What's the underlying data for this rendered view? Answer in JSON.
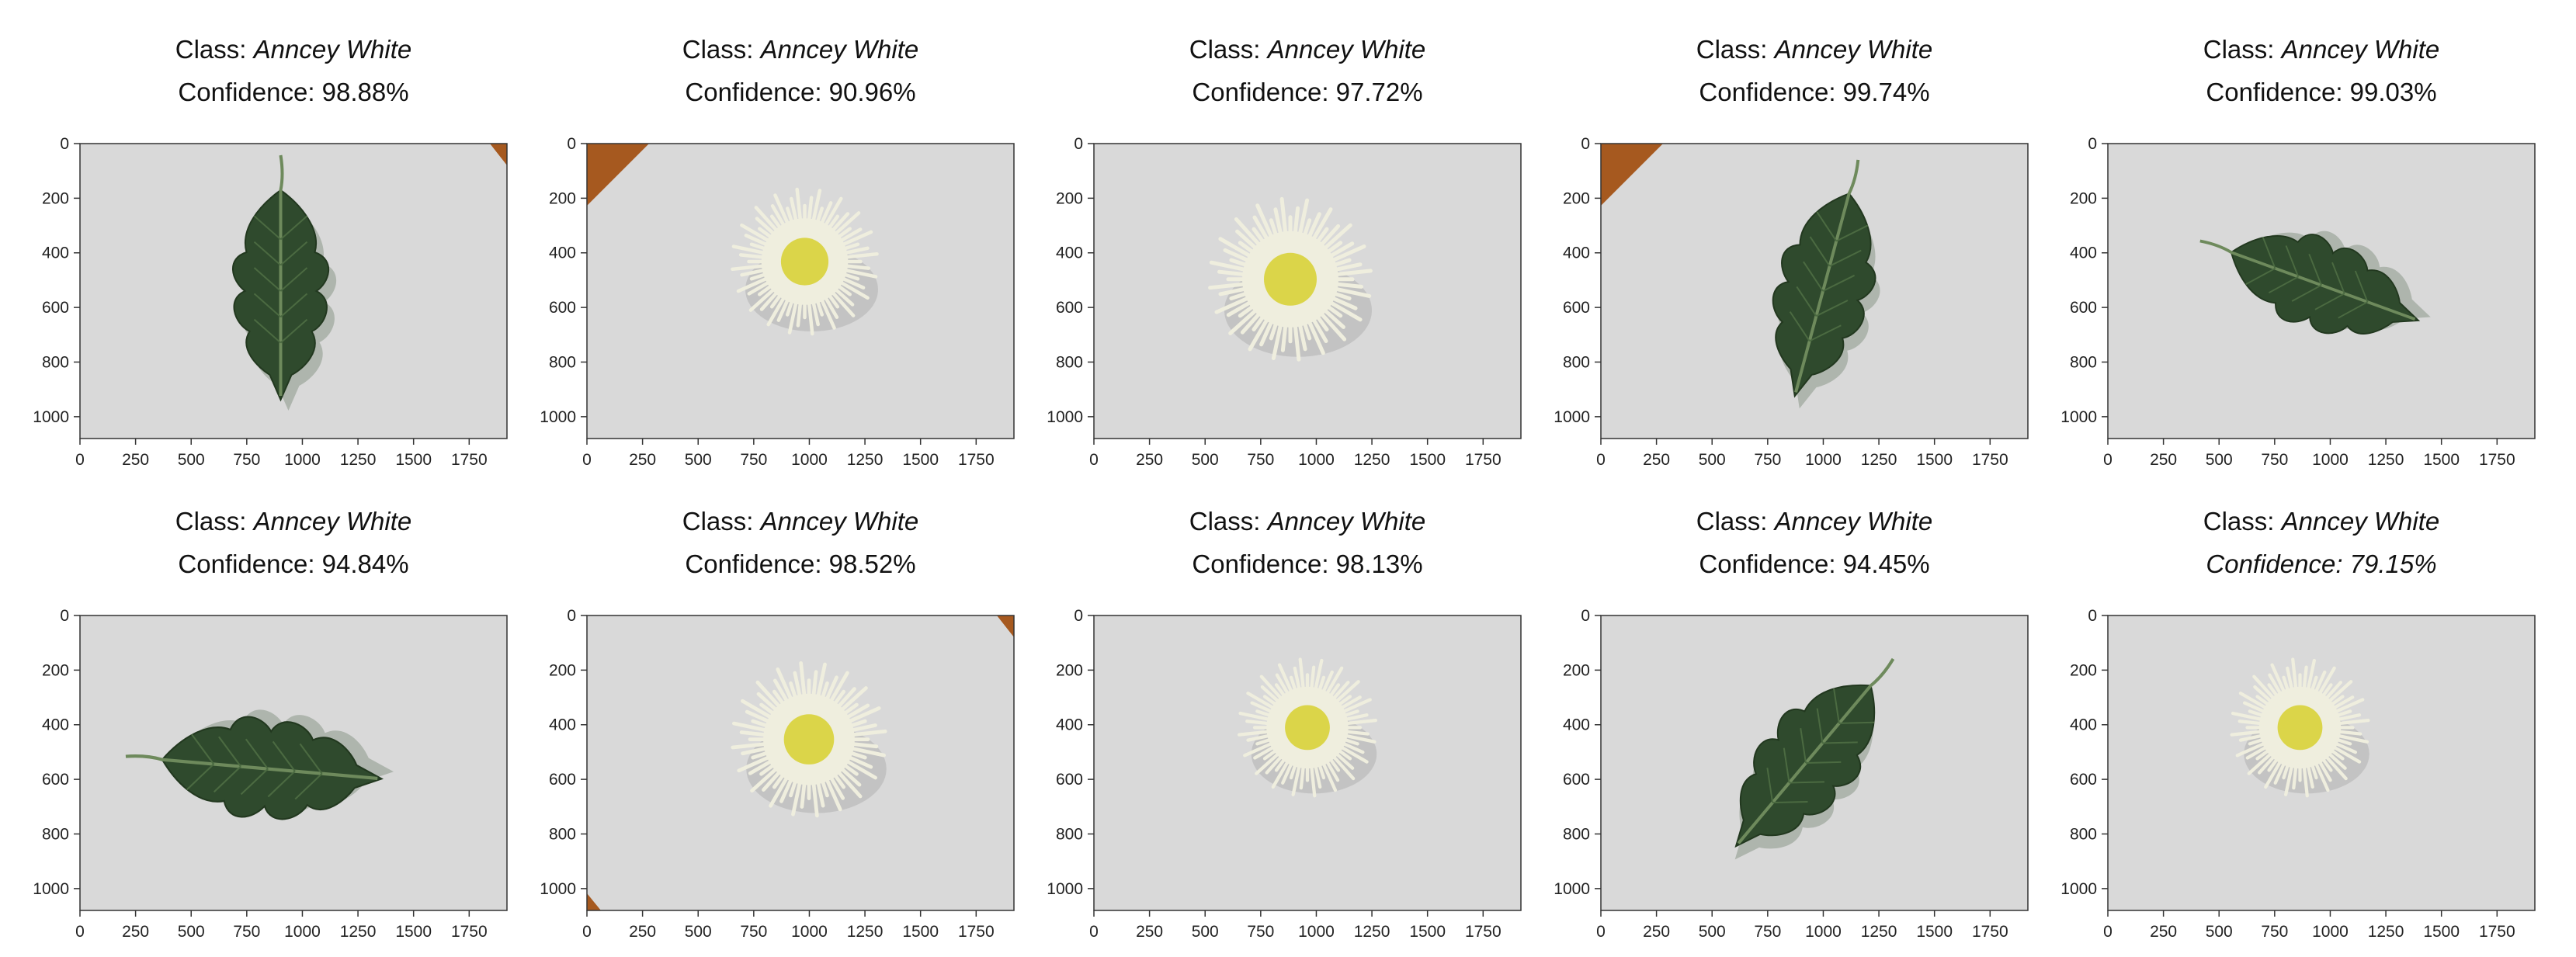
{
  "figure": {
    "class_prefix": "Class:",
    "confidence_prefix": "Confidence:",
    "x_ticks": [
      "0",
      "250",
      "500",
      "750",
      "1000",
      "1250",
      "1500",
      "1750"
    ],
    "y_ticks": [
      "0",
      "200",
      "400",
      "600",
      "800",
      "1000"
    ],
    "colors": {
      "background": "#d9d9d9",
      "leaf": "#2f4a2d",
      "flower_petals": "#efeede",
      "flower_center": "#d8d238",
      "corner": "#a6591f"
    },
    "panels": [
      {
        "class_name": "Anncey White",
        "confidence": "98.88%",
        "subject": "leaf"
      },
      {
        "class_name": "Anncey White",
        "confidence": "90.96%",
        "subject": "flower"
      },
      {
        "class_name": "Anncey White",
        "confidence": "97.72%",
        "subject": "flower"
      },
      {
        "class_name": "Anncey White",
        "confidence": "99.74%",
        "subject": "leaf"
      },
      {
        "class_name": "Anncey White",
        "confidence": "99.03%",
        "subject": "leaf"
      },
      {
        "class_name": "Anncey White",
        "confidence": "94.84%",
        "subject": "leaf"
      },
      {
        "class_name": "Anncey White",
        "confidence": "98.52%",
        "subject": "flower"
      },
      {
        "class_name": "Anncey White",
        "confidence": "98.13%",
        "subject": "flower"
      },
      {
        "class_name": "Anncey White",
        "confidence": "94.45%",
        "subject": "leaf"
      },
      {
        "class_name": "Anncey White",
        "confidence": "79.15%",
        "subject": "flower",
        "confidence_italic": true
      }
    ]
  }
}
